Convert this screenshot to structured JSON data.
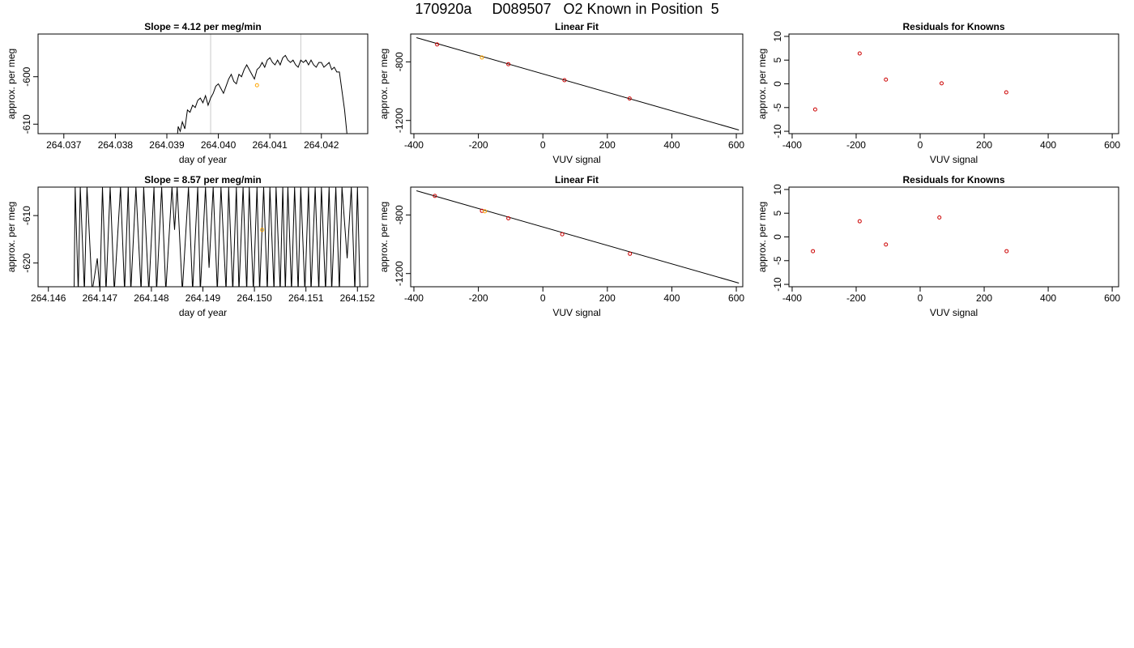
{
  "page": {
    "title": "170920a     D089507   O2 Known in Position  5"
  },
  "chart_data": [
    {
      "id": "ts1",
      "type": "line",
      "title": "Slope =  4.12  per meg/min",
      "xlabel": "day of year",
      "ylabel": "approx. per meg",
      "xlim": [
        264.0365,
        264.0429
      ],
      "ylim": [
        -612.0,
        -591.0
      ],
      "xticks": [
        264.037,
        264.038,
        264.039,
        264.04,
        264.041,
        264.042
      ],
      "xtick_labels": [
        "264.037",
        "264.038",
        "264.039",
        "264.040",
        "264.041",
        "264.042"
      ],
      "yticks": [
        -610,
        -600
      ],
      "ytick_labels": [
        "-610",
        "-600"
      ],
      "vlines": [
        264.03985,
        264.0416
      ],
      "marker": {
        "x": 264.04075,
        "y": -601.8,
        "color": "#ffa500"
      },
      "series": [
        {
          "color": "#000000",
          "points": [
            [
              264.0392,
              -613
            ],
            [
              264.03922,
              -610.5
            ],
            [
              264.03926,
              -611.5
            ],
            [
              264.0393,
              -609.5
            ],
            [
              264.03935,
              -611
            ],
            [
              264.0394,
              -607
            ],
            [
              264.03945,
              -607.5
            ],
            [
              264.0395,
              -606
            ],
            [
              264.03955,
              -606.5
            ],
            [
              264.0396,
              -605
            ],
            [
              264.03965,
              -604.5
            ],
            [
              264.0397,
              -605.5
            ],
            [
              264.03975,
              -604
            ],
            [
              264.0398,
              -606
            ],
            [
              264.03985,
              -604.5
            ],
            [
              264.0399,
              -603.5
            ],
            [
              264.03995,
              -602
            ],
            [
              264.04,
              -601.5
            ],
            [
              264.04005,
              -602.5
            ],
            [
              264.0401,
              -603.5
            ],
            [
              264.04015,
              -602
            ],
            [
              264.0402,
              -600.5
            ],
            [
              264.04025,
              -599.5
            ],
            [
              264.0403,
              -601
            ],
            [
              264.04035,
              -601.5
            ],
            [
              264.0404,
              -599.5
            ],
            [
              264.04045,
              -600
            ],
            [
              264.0405,
              -598.5
            ],
            [
              264.04055,
              -597.5
            ],
            [
              264.0406,
              -598.5
            ],
            [
              264.04065,
              -599.5
            ],
            [
              264.0407,
              -600.5
            ],
            [
              264.04075,
              -598.5
            ],
            [
              264.0408,
              -598
            ],
            [
              264.04085,
              -597
            ],
            [
              264.0409,
              -598
            ],
            [
              264.04095,
              -596.5
            ],
            [
              264.041,
              -596
            ],
            [
              264.04105,
              -597
            ],
            [
              264.0411,
              -597.5
            ],
            [
              264.04115,
              -596.5
            ],
            [
              264.0412,
              -597.5
            ],
            [
              264.04125,
              -596
            ],
            [
              264.0413,
              -595.5
            ],
            [
              264.04135,
              -596.5
            ],
            [
              264.0414,
              -597
            ],
            [
              264.04145,
              -596.5
            ],
            [
              264.0415,
              -597.5
            ],
            [
              264.04155,
              -598
            ],
            [
              264.0416,
              -596.5
            ],
            [
              264.04165,
              -597
            ],
            [
              264.0417,
              -596.5
            ],
            [
              264.04175,
              -597.5
            ],
            [
              264.0418,
              -596.5
            ],
            [
              264.04185,
              -597.5
            ],
            [
              264.0419,
              -598
            ],
            [
              264.04195,
              -597
            ],
            [
              264.042,
              -597
            ],
            [
              264.04205,
              -598
            ],
            [
              264.0421,
              -597.5
            ],
            [
              264.04215,
              -597
            ],
            [
              264.0422,
              -598.5
            ],
            [
              264.04225,
              -598
            ],
            [
              264.0423,
              -599
            ],
            [
              264.04235,
              -599
            ],
            [
              264.0424,
              -603
            ],
            [
              264.04245,
              -607
            ],
            [
              264.0425,
              -612.5
            ]
          ]
        }
      ]
    },
    {
      "id": "fit1",
      "type": "scatter",
      "title": "Linear Fit",
      "xlabel": "VUV signal",
      "ylabel": "approx. per meg",
      "xlim": [
        -410,
        620
      ],
      "ylim": [
        -1290,
        -610
      ],
      "xticks": [
        -400,
        -200,
        0,
        200,
        400,
        600
      ],
      "xtick_labels": [
        "-400",
        "-200",
        "0",
        "200",
        "400",
        "600"
      ],
      "yticks": [
        -1200,
        -800
      ],
      "ytick_labels": [
        "-1200",
        "-800"
      ],
      "fit_line": [
        [
          -392,
          -635
        ],
        [
          608,
          -1265
        ]
      ],
      "points": [
        [
          -328,
          -681,
          "#cc0000"
        ],
        [
          -189,
          -770,
          "#ffa500"
        ],
        [
          -107,
          -816,
          "#cc0000"
        ],
        [
          67,
          -925,
          "#cc0000"
        ],
        [
          269,
          -1050,
          "#cc0000"
        ]
      ]
    },
    {
      "id": "res1",
      "type": "scatter",
      "title": "Residuals for Knowns",
      "xlabel": "VUV signal",
      "ylabel": "approx. per meg",
      "xlim": [
        -410,
        620
      ],
      "ylim": [
        -10.5,
        10.5
      ],
      "xticks": [
        -400,
        -200,
        0,
        200,
        400,
        600
      ],
      "xtick_labels": [
        "-400",
        "-200",
        "0",
        "200",
        "400",
        "600"
      ],
      "yticks": [
        -10,
        -5,
        0,
        5,
        10
      ],
      "ytick_labels": [
        "-10",
        "-5",
        "0",
        "5",
        "10"
      ],
      "points": [
        [
          -328,
          -5.4,
          "#cc0000"
        ],
        [
          -189,
          6.4,
          "#cc0000"
        ],
        [
          -107,
          0.9,
          "#cc0000"
        ],
        [
          67,
          0.1,
          "#cc0000"
        ],
        [
          269,
          -1.8,
          "#cc0000"
        ]
      ]
    },
    {
      "id": "ts2",
      "type": "line",
      "title": "Slope =  8.57  per meg/min",
      "xlabel": "day of year",
      "ylabel": "approx. per meg",
      "xlim": [
        264.1458,
        264.1522
      ],
      "ylim": [
        -625.0,
        -604.0
      ],
      "xticks": [
        264.146,
        264.147,
        264.148,
        264.149,
        264.15,
        264.151,
        264.152
      ],
      "xtick_labels": [
        "264.146",
        "264.147",
        "264.148",
        "264.149",
        "264.150",
        "264.151",
        "264.152"
      ],
      "yticks": [
        -620,
        -610
      ],
      "ytick_labels": [
        "-620",
        "-610"
      ],
      "marker": {
        "x": 264.15015,
        "y": -613.0,
        "color": "#ffa500"
      },
      "series": [
        {
          "color": "#000000",
          "points": [
            [
              264.1465,
              -626
            ],
            [
              264.14652,
              -604
            ],
            [
              264.14658,
              -626
            ],
            [
              264.14662,
              -604
            ],
            [
              264.1467,
              -626
            ],
            [
              264.14675,
              -604
            ],
            [
              264.14685,
              -626
            ],
            [
              264.14695,
              -619
            ],
            [
              264.147,
              -626
            ],
            [
              264.14705,
              -604
            ],
            [
              264.14712,
              -626
            ],
            [
              264.1472,
              -604
            ],
            [
              264.14728,
              -626
            ],
            [
              264.1474,
              -604
            ],
            [
              264.14748,
              -626
            ],
            [
              264.14755,
              -604
            ],
            [
              264.1476,
              -626
            ],
            [
              264.1477,
              -604
            ],
            [
              264.1478,
              -626
            ],
            [
              264.14785,
              -604
            ],
            [
              264.14795,
              -626
            ],
            [
              264.14805,
              -604
            ],
            [
              264.1481,
              -626
            ],
            [
              264.1482,
              -604
            ],
            [
              264.14828,
              -626
            ],
            [
              264.1484,
              -604
            ],
            [
              264.14845,
              -613
            ],
            [
              264.1485,
              -604
            ],
            [
              264.1486,
              -626
            ],
            [
              264.14872,
              -604
            ],
            [
              264.1488,
              -626
            ],
            [
              264.1489,
              -604
            ],
            [
              264.14895,
              -626
            ],
            [
              264.14905,
              -604
            ],
            [
              264.14912,
              -621
            ],
            [
              264.1492,
              -604
            ],
            [
              264.14928,
              -626
            ],
            [
              264.14935,
              -604
            ],
            [
              264.14945,
              -626
            ],
            [
              264.1495,
              -604
            ],
            [
              264.14958,
              -626
            ],
            [
              264.14965,
              -604
            ],
            [
              264.1497,
              -626
            ],
            [
              264.14978,
              -604
            ],
            [
              264.14985,
              -626
            ],
            [
              264.1499,
              -604
            ],
            [
              264.14998,
              -626
            ],
            [
              264.15005,
              -604
            ],
            [
              264.1501,
              -626
            ],
            [
              264.15018,
              -604
            ],
            [
              264.15025,
              -626
            ],
            [
              264.1503,
              -604
            ],
            [
              264.15038,
              -626
            ],
            [
              264.15042,
              -604
            ],
            [
              264.1505,
              -626
            ],
            [
              264.15055,
              -604
            ],
            [
              264.1506,
              -626
            ],
            [
              264.15065,
              -604
            ],
            [
              264.15072,
              -626
            ],
            [
              264.15078,
              -604
            ],
            [
              264.15085,
              -626
            ],
            [
              264.1509,
              -604
            ],
            [
              264.15098,
              -626
            ],
            [
              264.15105,
              -604
            ],
            [
              264.1511,
              -626
            ],
            [
              264.15118,
              -604
            ],
            [
              264.15125,
              -626
            ],
            [
              264.1513,
              -604
            ],
            [
              264.15138,
              -626
            ],
            [
              264.15145,
              -604
            ],
            [
              264.1515,
              -626
            ],
            [
              264.15158,
              -604
            ],
            [
              264.15165,
              -626
            ],
            [
              264.1517,
              -604
            ],
            [
              264.1518,
              -619
            ],
            [
              264.15188,
              -604
            ],
            [
              264.15195,
              -626
            ],
            [
              264.152,
              -604
            ],
            [
              264.15205,
              -626
            ]
          ]
        }
      ]
    },
    {
      "id": "fit2",
      "type": "scatter",
      "title": "Linear Fit",
      "xlabel": "VUV signal",
      "ylabel": "approx. per meg",
      "xlim": [
        -410,
        620
      ],
      "ylim": [
        -1290,
        -610
      ],
      "xticks": [
        -400,
        -200,
        0,
        200,
        400,
        600
      ],
      "xtick_labels": [
        "-400",
        "-200",
        "0",
        "200",
        "400",
        "600"
      ],
      "yticks": [
        -1200,
        -800
      ],
      "ytick_labels": [
        "-1200",
        "-800"
      ],
      "fit_line": [
        [
          -392,
          -635
        ],
        [
          608,
          -1265
        ]
      ],
      "points": [
        [
          -335,
          -670,
          "#cc0000"
        ],
        [
          -189,
          -772,
          "#cc0000"
        ],
        [
          -180,
          -775,
          "#ffa500"
        ],
        [
          -107,
          -823,
          "#cc0000"
        ],
        [
          60,
          -932,
          "#cc0000"
        ],
        [
          270,
          -1065,
          "#cc0000"
        ]
      ]
    },
    {
      "id": "res2",
      "type": "scatter",
      "title": "Residuals for Knowns",
      "xlabel": "VUV signal",
      "ylabel": "approx. per meg",
      "xlim": [
        -410,
        620
      ],
      "ylim": [
        -10.5,
        10.5
      ],
      "xticks": [
        -400,
        -200,
        0,
        200,
        400,
        600
      ],
      "xtick_labels": [
        "-400",
        "-200",
        "0",
        "200",
        "400",
        "600"
      ],
      "yticks": [
        -10,
        -5,
        0,
        5,
        10
      ],
      "ytick_labels": [
        "-10",
        "-5",
        "0",
        "5",
        "10"
      ],
      "points": [
        [
          -335,
          -3.0,
          "#cc0000"
        ],
        [
          -189,
          3.3,
          "#cc0000"
        ],
        [
          -107,
          -1.6,
          "#cc0000"
        ],
        [
          60,
          4.1,
          "#cc0000"
        ],
        [
          270,
          -3.0,
          "#cc0000"
        ]
      ]
    }
  ]
}
